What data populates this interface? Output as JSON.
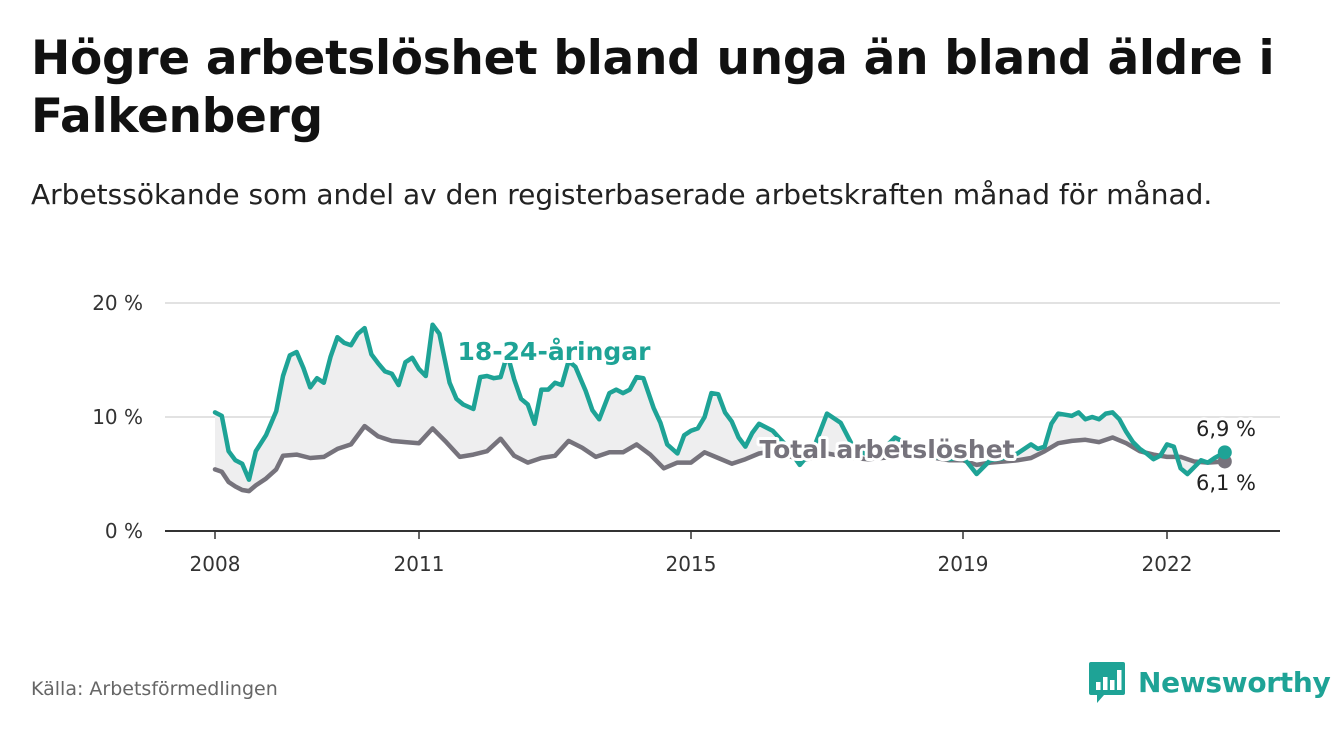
{
  "title": "Högre arbetslöshet bland unga än bland äldre i Falkenberg",
  "subtitle": "Arbetssökande som andel av den registerbaserade arbetskraften månad för månad.",
  "source": "Källa: Arbetsförmedlingen",
  "brand": {
    "name": "Newsworthy",
    "icon": "newsworthy-logo-icon"
  },
  "colors": {
    "young": "#1ea396",
    "total": "#76737c",
    "band": "#eeeeef",
    "grid": "#d9d9d9",
    "axis": "#333333"
  },
  "chart_data": {
    "type": "line",
    "title": "Högre arbetslöshet bland unga än bland äldre i Falkenberg",
    "xlabel": "",
    "ylabel": "",
    "xlim": [
      2008.0,
      2023.0
    ],
    "ylim": [
      0,
      20
    ],
    "grid": true,
    "y_ticks": [
      0,
      10,
      20
    ],
    "y_tick_labels": [
      "0 %",
      "10 %",
      "20 %"
    ],
    "x_ticks": [
      2008,
      2011,
      2015,
      2019,
      2022
    ],
    "x_tick_labels": [
      "2008",
      "2011",
      "2015",
      "2019",
      "2022"
    ],
    "series": [
      {
        "name": "18-24-åringar",
        "label": "18-24-åringar",
        "end_label": "6,9 %",
        "x": [
          2008.0,
          2008.1,
          2008.2,
          2008.3,
          2008.4,
          2008.5,
          2008.6,
          2008.75,
          2008.9,
          2009.0,
          2009.1,
          2009.2,
          2009.3,
          2009.4,
          2009.5,
          2009.6,
          2009.7,
          2009.8,
          2009.9,
          2010.0,
          2010.1,
          2010.2,
          2010.3,
          2010.4,
          2010.5,
          2010.6,
          2010.7,
          2010.8,
          2010.9,
          2011.0,
          2011.1,
          2011.2,
          2011.3,
          2011.45,
          2011.55,
          2011.65,
          2011.8,
          2011.9,
          2012.0,
          2012.1,
          2012.2,
          2012.3,
          2012.4,
          2012.5,
          2012.6,
          2012.7,
          2012.8,
          2012.9,
          2013.0,
          2013.1,
          2013.2,
          2013.3,
          2013.45,
          2013.55,
          2013.65,
          2013.8,
          2013.9,
          2014.0,
          2014.1,
          2014.2,
          2014.3,
          2014.45,
          2014.55,
          2014.65,
          2014.8,
          2014.9,
          2015.0,
          2015.1,
          2015.2,
          2015.3,
          2015.4,
          2015.5,
          2015.6,
          2015.7,
          2015.8,
          2015.9,
          2016.0,
          2016.2,
          2016.4,
          2016.6,
          2016.8,
          2017.0,
          2017.2,
          2017.4,
          2017.6,
          2017.8,
          2018.0,
          2018.2,
          2018.4,
          2018.6,
          2018.8,
          2019.0,
          2019.2,
          2019.4,
          2019.6,
          2019.8,
          2020.0,
          2020.1,
          2020.2,
          2020.3,
          2020.4,
          2020.5,
          2020.6,
          2020.7,
          2020.8,
          2020.9,
          2021.0,
          2021.1,
          2021.2,
          2021.3,
          2021.4,
          2021.5,
          2021.6,
          2021.7,
          2021.8,
          2021.9,
          2022.0,
          2022.1,
          2022.2,
          2022.3,
          2022.4,
          2022.5,
          2022.6,
          2022.7,
          2022.85
        ],
        "values": [
          10.4,
          10.1,
          7.0,
          6.2,
          5.9,
          4.5,
          7.0,
          8.4,
          10.5,
          13.6,
          15.4,
          15.7,
          14.3,
          12.6,
          13.4,
          13.0,
          15.3,
          17.0,
          16.5,
          16.3,
          17.3,
          17.8,
          15.5,
          14.7,
          14.0,
          13.8,
          12.8,
          14.8,
          15.2,
          14.2,
          13.6,
          18.1,
          17.3,
          13.0,
          11.6,
          11.1,
          10.7,
          13.5,
          13.6,
          13.4,
          13.5,
          15.5,
          13.3,
          11.6,
          11.1,
          9.4,
          12.4,
          12.4,
          13.0,
          12.8,
          14.9,
          14.4,
          12.3,
          10.6,
          9.8,
          12.1,
          12.4,
          12.1,
          12.4,
          13.5,
          13.4,
          10.8,
          9.5,
          7.6,
          6.8,
          8.4,
          8.8,
          9.0,
          10.0,
          12.1,
          12.0,
          10.4,
          9.6,
          8.2,
          7.4,
          8.6,
          9.4,
          8.8,
          7.5,
          5.8,
          7.2,
          10.3,
          9.5,
          7.2,
          6.7,
          7.0,
          8.2,
          7.6,
          6.8,
          6.5,
          6.3,
          6.5,
          5.0,
          6.2,
          6.4,
          6.8,
          7.6,
          7.2,
          7.4,
          9.4,
          10.3,
          10.2,
          10.1,
          10.4,
          9.8,
          10.0,
          9.8,
          10.3,
          10.4,
          9.8,
          8.7,
          7.8,
          7.2,
          6.8,
          6.3,
          6.6,
          7.6,
          7.4,
          5.5,
          5.0,
          5.6,
          6.2,
          6.0,
          6.4,
          6.9
        ]
      },
      {
        "name": "Total arbetslöshet",
        "label": "Total arbetslöshet",
        "end_label": "6,1 %",
        "x": [
          2008.0,
          2008.1,
          2008.2,
          2008.3,
          2008.4,
          2008.5,
          2008.6,
          2008.75,
          2008.9,
          2009.0,
          2009.2,
          2009.4,
          2009.6,
          2009.8,
          2010.0,
          2010.2,
          2010.4,
          2010.6,
          2010.8,
          2011.0,
          2011.2,
          2011.4,
          2011.6,
          2011.8,
          2012.0,
          2012.2,
          2012.4,
          2012.6,
          2012.8,
          2013.0,
          2013.2,
          2013.4,
          2013.6,
          2013.8,
          2014.0,
          2014.2,
          2014.4,
          2014.6,
          2014.8,
          2015.0,
          2015.2,
          2015.4,
          2015.6,
          2015.8,
          2016.0,
          2016.2,
          2016.4,
          2016.6,
          2016.8,
          2017.0,
          2017.2,
          2017.4,
          2017.6,
          2017.8,
          2018.0,
          2018.2,
          2018.4,
          2018.6,
          2018.8,
          2019.0,
          2019.2,
          2019.4,
          2019.6,
          2019.8,
          2020.0,
          2020.2,
          2020.4,
          2020.6,
          2020.8,
          2021.0,
          2021.2,
          2021.4,
          2021.6,
          2021.8,
          2022.0,
          2022.2,
          2022.4,
          2022.6,
          2022.85
        ],
        "values": [
          5.4,
          5.2,
          4.3,
          3.9,
          3.6,
          3.5,
          4.0,
          4.6,
          5.4,
          6.6,
          6.7,
          6.4,
          6.5,
          7.2,
          7.6,
          9.2,
          8.3,
          7.9,
          7.8,
          7.7,
          9.0,
          7.8,
          6.5,
          6.7,
          7.0,
          8.1,
          6.6,
          6.0,
          6.4,
          6.6,
          7.9,
          7.3,
          6.5,
          6.9,
          6.9,
          7.6,
          6.7,
          5.5,
          6.0,
          6.0,
          6.9,
          6.4,
          5.9,
          6.3,
          6.8,
          7.0,
          6.7,
          6.2,
          6.4,
          6.8,
          6.6,
          6.4,
          6.3,
          6.4,
          6.5,
          6.7,
          6.6,
          6.4,
          6.2,
          6.2,
          5.8,
          6.0,
          6.1,
          6.2,
          6.4,
          7.0,
          7.7,
          7.9,
          8.0,
          7.8,
          8.2,
          7.7,
          7.0,
          6.7,
          6.5,
          6.5,
          6.1,
          6.0,
          6.1
        ]
      }
    ]
  }
}
